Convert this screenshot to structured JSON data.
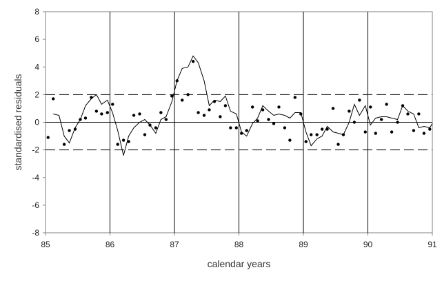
{
  "chart_data": {
    "type": "scatter",
    "title": "",
    "xlabel": "calendar years",
    "ylabel": "standardised residuals",
    "xlim": [
      85,
      91
    ],
    "ylim": [
      -8,
      8
    ],
    "x_ticks": [
      85,
      86,
      87,
      88,
      89,
      90,
      91
    ],
    "y_ticks": [
      -8,
      -6,
      -4,
      -2,
      0,
      2,
      4,
      6,
      8
    ],
    "x_tick_labels": [
      "85",
      "86",
      "87",
      "88",
      "89",
      "90",
      "91"
    ],
    "y_tick_labels": [
      "-8",
      "-6",
      "-4",
      "-2",
      "0",
      "2",
      "4",
      "6",
      "8"
    ],
    "vertical_gridlines_at": [
      86,
      87,
      88,
      89,
      90
    ],
    "reference_lines": [
      {
        "y": 2,
        "style": "dashed"
      },
      {
        "y": -2,
        "style": "dashed"
      },
      {
        "y": 0,
        "style": "solid"
      }
    ],
    "grid": false,
    "legend": "none",
    "series": [
      {
        "kind": "points",
        "x": [
          85.04,
          85.12,
          85.29,
          85.37,
          85.46,
          85.54,
          85.62,
          85.71,
          85.79,
          85.87,
          85.96,
          86.04,
          86.12,
          86.21,
          86.29,
          86.37,
          86.46,
          86.54,
          86.62,
          86.71,
          86.79,
          86.87,
          86.96,
          87.04,
          87.12,
          87.21,
          87.29,
          87.37,
          87.46,
          87.54,
          87.62,
          87.71,
          87.79,
          87.87,
          87.96,
          88.04,
          88.12,
          88.21,
          88.29,
          88.37,
          88.46,
          88.54,
          88.62,
          88.71,
          88.79,
          88.87,
          88.96,
          89.04,
          89.12,
          89.21,
          89.29,
          89.37,
          89.46,
          89.54,
          89.62,
          89.71,
          89.79,
          89.87,
          89.96,
          90.04,
          90.12,
          90.21,
          90.29,
          90.37,
          90.46,
          90.54,
          90.62,
          90.71,
          90.79,
          90.87,
          90.96
        ],
        "y": [
          -1.1,
          1.7,
          -1.6,
          -0.6,
          -0.5,
          0.2,
          0.3,
          1.8,
          0.8,
          0.6,
          0.7,
          1.3,
          -1.6,
          -1.3,
          -1.4,
          0.5,
          0.6,
          -0.9,
          -0.2,
          -0.4,
          0.7,
          0.2,
          1.9,
          3.0,
          1.6,
          2.0,
          4.4,
          0.7,
          0.5,
          0.9,
          1.5,
          0.4,
          1.2,
          -0.4,
          -0.4,
          -0.8,
          -0.6,
          1.1,
          0.1,
          0.9,
          0.2,
          -0.1,
          1.1,
          -0.4,
          -1.3,
          1.8,
          0.6,
          -1.4,
          -0.9,
          -0.9,
          -0.5,
          -0.5,
          1.0,
          -1.6,
          -0.9,
          0.8,
          0.0,
          1.6,
          -0.7,
          1.1,
          -0.8,
          0.2,
          1.3,
          -0.7,
          0.0,
          1.2,
          0.6,
          -0.6,
          0.6,
          -0.8,
          -0.5
        ]
      },
      {
        "kind": "line",
        "x": [
          85.12,
          85.21,
          85.29,
          85.37,
          85.46,
          85.54,
          85.62,
          85.71,
          85.79,
          85.87,
          85.96,
          86.04,
          86.12,
          86.21,
          86.29,
          86.37,
          86.46,
          86.54,
          86.62,
          86.71,
          86.79,
          86.87,
          86.96,
          87.04,
          87.12,
          87.21,
          87.29,
          87.37,
          87.46,
          87.54,
          87.62,
          87.71,
          87.79,
          87.87,
          87.96,
          88.04,
          88.12,
          88.21,
          88.29,
          88.37,
          88.46,
          88.54,
          88.62,
          88.71,
          88.79,
          88.87,
          88.96,
          89.04,
          89.12,
          89.21,
          89.29,
          89.37,
          89.46,
          89.54,
          89.62,
          89.71,
          89.79,
          89.87,
          89.96,
          90.04,
          90.12,
          90.21,
          90.29,
          90.37,
          90.46,
          90.54,
          90.62,
          90.71,
          90.79,
          90.87,
          90.96,
          91.0
        ],
        "y": [
          0.6,
          0.5,
          -1.0,
          -1.5,
          -0.4,
          0.2,
          1.2,
          1.7,
          2.0,
          1.3,
          1.6,
          0.7,
          -0.6,
          -2.4,
          -1.0,
          -0.4,
          0.0,
          0.2,
          -0.2,
          -0.8,
          0.2,
          0.4,
          1.5,
          3.0,
          3.9,
          4.0,
          4.8,
          4.3,
          3.0,
          1.2,
          1.6,
          1.5,
          1.9,
          0.8,
          0.6,
          -0.7,
          -1.0,
          -0.1,
          0.3,
          1.2,
          0.8,
          0.5,
          0.6,
          0.5,
          0.3,
          0.7,
          0.7,
          -0.7,
          -1.7,
          -1.2,
          -1.0,
          -0.3,
          -0.7,
          -0.8,
          -0.9,
          0.0,
          1.3,
          0.5,
          1.2,
          -0.2,
          0.3,
          0.4,
          0.4,
          0.3,
          0.2,
          1.2,
          0.8,
          0.6,
          -0.4,
          -0.3,
          -0.4,
          -0.1
        ]
      }
    ]
  }
}
